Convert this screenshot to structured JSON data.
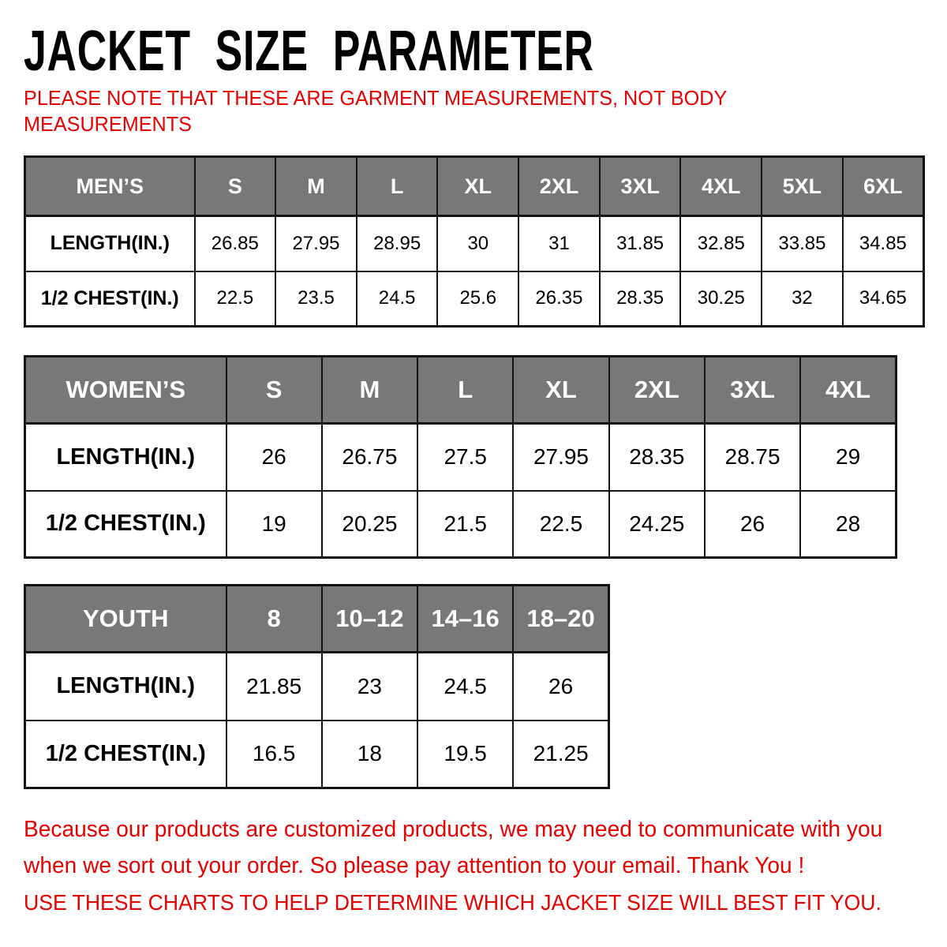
{
  "title": "JACKET SIZE PARAMETER",
  "note": "PLEASE NOTE THAT THESE ARE GARMENT MEASUREMENTS, NOT BODY MEASUREMENTS",
  "colors": {
    "accent_red": "#e60000",
    "header_gray": "#787878",
    "border_black": "#141414",
    "header_text": "#ffffff"
  },
  "chart_data": [
    {
      "type": "table",
      "title": "MEN’S",
      "columns": [
        "MEN’S",
        "S",
        "M",
        "L",
        "XL",
        "2XL",
        "3XL",
        "4XL",
        "5XL",
        "6XL"
      ],
      "rows": [
        {
          "label": "LENGTH(IN.)",
          "values": [
            "26.85",
            "27.95",
            "28.95",
            "30",
            "31",
            "31.85",
            "32.85",
            "33.85",
            "34.85"
          ]
        },
        {
          "label": "1/2 CHEST(IN.)",
          "values": [
            "22.5",
            "23.5",
            "24.5",
            "25.6",
            "26.35",
            "28.35",
            "30.25",
            "32",
            "34.65"
          ]
        }
      ]
    },
    {
      "type": "table",
      "title": "WOMEN’S",
      "columns": [
        "WOMEN’S",
        "S",
        "M",
        "L",
        "XL",
        "2XL",
        "3XL",
        "4XL"
      ],
      "rows": [
        {
          "label": "LENGTH(IN.)",
          "values": [
            "26",
            "26.75",
            "27.5",
            "27.95",
            "28.35",
            "28.75",
            "29"
          ]
        },
        {
          "label": "1/2 CHEST(IN.)",
          "values": [
            "19",
            "20.25",
            "21.5",
            "22.5",
            "24.25",
            "26",
            "28"
          ]
        }
      ]
    },
    {
      "type": "table",
      "title": "YOUTH",
      "columns": [
        "YOUTH",
        "8",
        "10–12",
        "14–16",
        "18–20"
      ],
      "rows": [
        {
          "label": "LENGTH(IN.)",
          "values": [
            "21.85",
            "23",
            "24.5",
            "26"
          ]
        },
        {
          "label": "1/2 CHEST(IN.)",
          "values": [
            "16.5",
            "18",
            "19.5",
            "21.25"
          ]
        }
      ]
    }
  ],
  "tables": [
    {
      "id": "mens",
      "name": "MEN’S",
      "sizes": [
        "S",
        "M",
        "L",
        "XL",
        "2XL",
        "3XL",
        "4XL",
        "5XL",
        "6XL"
      ],
      "rows": [
        {
          "label": "LENGTH(IN.)",
          "values": [
            "26.85",
            "27.95",
            "28.95",
            "30",
            "31",
            "31.85",
            "32.85",
            "33.85",
            "34.85"
          ]
        },
        {
          "label": "1/2 CHEST(IN.)",
          "values": [
            "22.5",
            "23.5",
            "24.5",
            "25.6",
            "26.35",
            "28.35",
            "30.25",
            "32",
            "34.65"
          ]
        }
      ]
    },
    {
      "id": "womens",
      "name": "WOMEN’S",
      "sizes": [
        "S",
        "M",
        "L",
        "XL",
        "2XL",
        "3XL",
        "4XL"
      ],
      "rows": [
        {
          "label": "LENGTH(IN.)",
          "values": [
            "26",
            "26.75",
            "27.5",
            "27.95",
            "28.35",
            "28.75",
            "29"
          ]
        },
        {
          "label": "1/2 CHEST(IN.)",
          "values": [
            "19",
            "20.25",
            "21.5",
            "22.5",
            "24.25",
            "26",
            "28"
          ]
        }
      ]
    },
    {
      "id": "youth",
      "name": "YOUTH",
      "sizes": [
        "8",
        "10–12",
        "14–16",
        "18–20"
      ],
      "rows": [
        {
          "label": "LENGTH(IN.)",
          "values": [
            "21.85",
            "23",
            "24.5",
            "26"
          ]
        },
        {
          "label": "1/2 CHEST(IN.)",
          "values": [
            "16.5",
            "18",
            "19.5",
            "21.25"
          ]
        }
      ]
    }
  ],
  "footer": {
    "line1": "Because our products are customized products, we may need to communicate with you when we sort out your order. So please pay attention to your email. Thank You !",
    "line2": "USE THESE CHARTS TO HELP DETERMINE WHICH JACKET SIZE WILL BEST FIT YOU."
  }
}
